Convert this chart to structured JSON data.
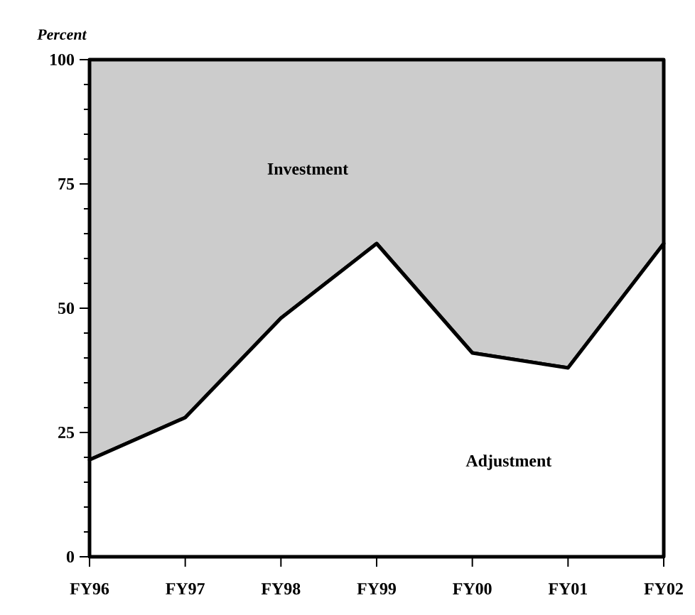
{
  "chart_data": {
    "type": "area",
    "stacked": true,
    "ylabel": "Percent",
    "categories": [
      "FY96",
      "FY97",
      "FY98",
      "FY99",
      "FY00",
      "FY01",
      "FY02"
    ],
    "series": [
      {
        "name": "Adjustment",
        "color": "#ffffff",
        "values": [
          19.5,
          28,
          48,
          63,
          41,
          38,
          63
        ]
      },
      {
        "name": "Investment",
        "color": "#cccccc",
        "values": [
          80.5,
          72,
          52,
          37,
          59,
          62,
          37
        ]
      }
    ],
    "ylim": [
      0,
      100
    ],
    "yticks": [
      0,
      25,
      50,
      75,
      100
    ],
    "grid": false,
    "legend": false
  }
}
